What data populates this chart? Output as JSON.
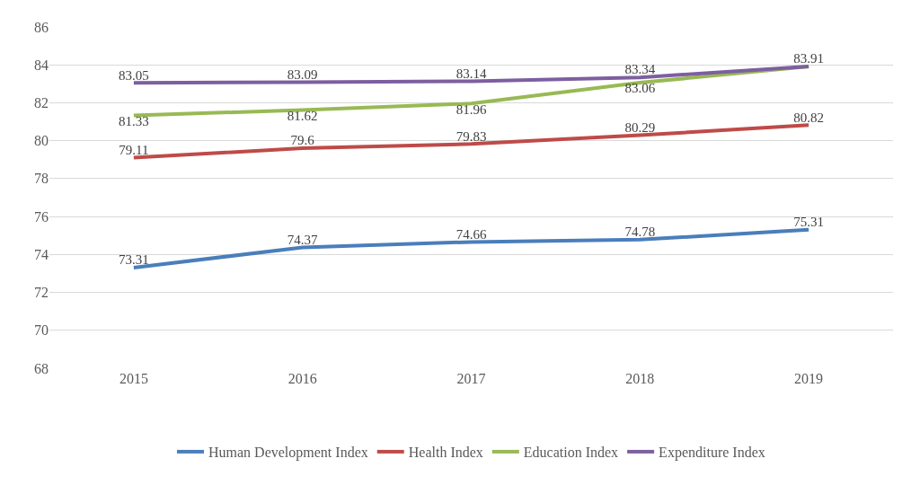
{
  "chart_data": {
    "type": "line",
    "categories": [
      "2015",
      "2016",
      "2017",
      "2018",
      "2019"
    ],
    "series": [
      {
        "name": "Human Development Index",
        "color": "#4a7ebb",
        "values": [
          73.31,
          74.37,
          74.66,
          74.78,
          75.31
        ],
        "value_labels": [
          "73.31",
          "74.37",
          "74.66",
          "74.78",
          "75.31"
        ]
      },
      {
        "name": "Health Index",
        "color": "#be4b48",
        "values": [
          79.11,
          79.6,
          79.83,
          80.29,
          80.82
        ],
        "value_labels": [
          "79.11",
          "79.6",
          "79.83",
          "80.29",
          "80.82"
        ]
      },
      {
        "name": "Education Index",
        "color": "#98b954",
        "values": [
          81.33,
          81.62,
          81.96,
          83.06,
          83.91
        ],
        "value_labels": [
          "81.33",
          "81.62",
          "81.96",
          "83.06",
          null
        ]
      },
      {
        "name": "Expenditure Index",
        "color": "#7d5fa0",
        "values": [
          83.05,
          83.09,
          83.14,
          83.34,
          83.91
        ],
        "value_labels": [
          "83.05",
          "83.09",
          "83.14",
          "83.34",
          "83.91"
        ]
      }
    ],
    "ylim": [
      68,
      86
    ],
    "yticks": [
      68,
      70,
      72,
      74,
      76,
      78,
      80,
      82,
      84,
      86
    ],
    "grid": "y",
    "legend": "bottom",
    "marker": "none",
    "line_style": "solid"
  }
}
